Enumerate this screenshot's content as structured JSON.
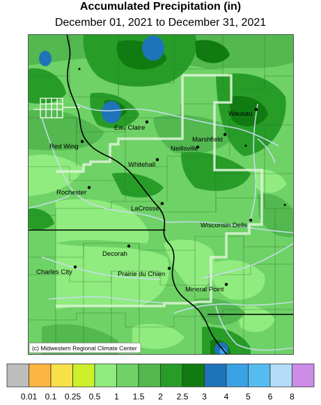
{
  "header": {
    "title": "Accumulated Precipitation (in)",
    "subtitle": "December 01, 2021 to December 31, 2021"
  },
  "copyright": "(c) Midwestern Regional Climate Center",
  "cities": [
    {
      "name": "Eau Claire"
    },
    {
      "name": "Wausau"
    },
    {
      "name": "Marshfield"
    },
    {
      "name": "Neillsville"
    },
    {
      "name": "Red Wing"
    },
    {
      "name": "Whitehall"
    },
    {
      "name": "Rochester"
    },
    {
      "name": "LaCrosse"
    },
    {
      "name": "Wisconsin Dells"
    },
    {
      "name": "Decorah"
    },
    {
      "name": "Charles City"
    },
    {
      "name": "Prairie du Chien"
    },
    {
      "name": "Mineral Point"
    }
  ],
  "legend": {
    "colors": [
      "#bdbdbd",
      "#fbb540",
      "#f7e048",
      "#cdf02a",
      "#90ec7e",
      "#6fd266",
      "#52b84f",
      "#279d27",
      "#0f7b10",
      "#1f73b8",
      "#3aa3e3",
      "#56bcf0",
      "#b5dcf8",
      "#cc8ce8"
    ],
    "labels": [
      "0.01",
      "0.1",
      "0.25",
      "0.5",
      "1",
      "1.5",
      "2",
      "2.5",
      "3",
      "4",
      "5",
      "6",
      "8"
    ]
  }
}
